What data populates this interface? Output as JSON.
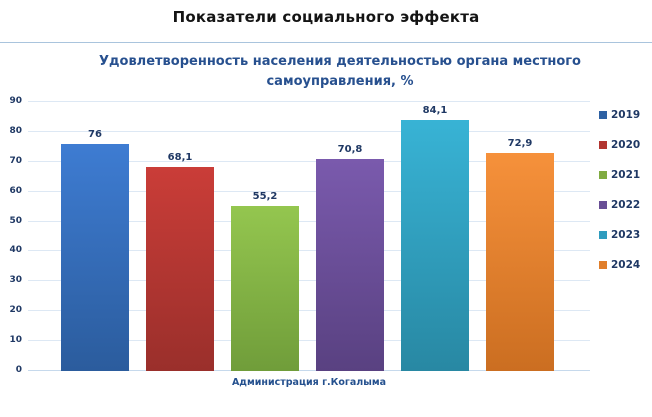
{
  "header": {
    "title": "Показатели социального эффекта"
  },
  "chart_data": {
    "type": "bar",
    "title": "Удовлетворенность населения деятельностью органа местного самоуправления, %",
    "title_lines": [
      "Удовлетворенность населения деятельностью органа местного",
      "самоуправления, %"
    ],
    "categories": [
      "Администрация г.Когалыма"
    ],
    "series": [
      {
        "name": "2019",
        "value": 76,
        "label": "76",
        "color_top": "#3e7cd2",
        "color_bottom": "#2b5c9d",
        "legend_color": "#2e61a3"
      },
      {
        "name": "2020",
        "value": 68.1,
        "label": "68,1",
        "color_top": "#ca3d38",
        "color_bottom": "#9a2f2b",
        "legend_color": "#b23530"
      },
      {
        "name": "2021",
        "value": 55.2,
        "label": "55,2",
        "color_top": "#94c64f",
        "color_bottom": "#709d3a",
        "legend_color": "#80ab41"
      },
      {
        "name": "2022",
        "value": 70.8,
        "label": "70,8",
        "color_top": "#7a5aad",
        "color_bottom": "#594181",
        "legend_color": "#684e95"
      },
      {
        "name": "2023",
        "value": 84.1,
        "label": "84,1",
        "color_top": "#38b3d5",
        "color_bottom": "#2888a3",
        "legend_color": "#2f9cbe"
      },
      {
        "name": "2024",
        "value": 72.9,
        "label": "72,9",
        "color_top": "#f6913b",
        "color_bottom": "#cb6e21",
        "legend_color": "#e07e2b"
      }
    ],
    "ylim": [
      0,
      90
    ],
    "ytick_step": 10,
    "yticks": [
      0,
      10,
      20,
      30,
      40,
      50,
      60,
      70,
      80,
      90
    ],
    "grid": true,
    "legend_position": "right",
    "xlabel": "",
    "ylabel": ""
  }
}
